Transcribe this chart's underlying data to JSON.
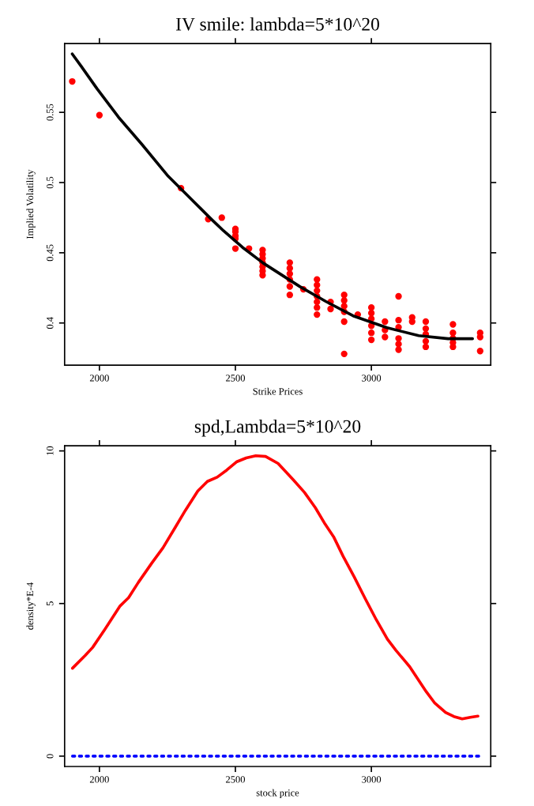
{
  "chart_data": [
    {
      "type": "scatter",
      "title": "IV smile: lambda=5*10^20",
      "xlabel": "Strike Prices",
      "ylabel": "Implied Volatility",
      "xlim": [
        1872,
        3439
      ],
      "ylim": [
        0.37,
        0.599
      ],
      "xticks": [
        2000,
        2500,
        3000
      ],
      "yticks": [
        0.4,
        0.45,
        0.5,
        0.55
      ],
      "grid": false,
      "series": [
        {
          "marker": "circle",
          "color": "#ff0000",
          "x": [
            1900,
            2000,
            2300,
            2400,
            2450,
            2500,
            2500,
            2500,
            2500,
            2500,
            2550,
            2600,
            2600,
            2600,
            2600,
            2600,
            2600,
            2600,
            2700,
            2700,
            2700,
            2700,
            2700,
            2700,
            2750,
            2800,
            2800,
            2800,
            2800,
            2800,
            2800,
            2800,
            2850,
            2850,
            2900,
            2900,
            2900,
            2900,
            2900,
            2900,
            2950,
            3000,
            3000,
            3000,
            3000,
            3000,
            3000,
            3050,
            3050,
            3050,
            3100,
            3100,
            3100,
            3100,
            3100,
            3100,
            3150,
            3150,
            3200,
            3200,
            3200,
            3200,
            3200,
            3300,
            3300,
            3300,
            3300,
            3300,
            3400,
            3400,
            3400
          ],
          "values": [
            0.572,
            0.548,
            0.496,
            0.474,
            0.475,
            0.467,
            0.465,
            0.462,
            0.46,
            0.453,
            0.453,
            0.452,
            0.449,
            0.446,
            0.443,
            0.44,
            0.437,
            0.434,
            0.443,
            0.439,
            0.435,
            0.431,
            0.426,
            0.42,
            0.424,
            0.431,
            0.427,
            0.423,
            0.419,
            0.415,
            0.411,
            0.406,
            0.415,
            0.41,
            0.42,
            0.416,
            0.412,
            0.408,
            0.401,
            0.378,
            0.406,
            0.411,
            0.407,
            0.403,
            0.398,
            0.393,
            0.388,
            0.401,
            0.395,
            0.39,
            0.419,
            0.402,
            0.397,
            0.389,
            0.385,
            0.381,
            0.404,
            0.401,
            0.401,
            0.396,
            0.392,
            0.387,
            0.383,
            0.399,
            0.393,
            0.389,
            0.386,
            0.383,
            0.393,
            0.39,
            0.38
          ]
        },
        {
          "type": "line",
          "marker": "none",
          "color": "#000000",
          "x": [
            1900,
            1932,
            1991,
            2070,
            2157,
            2253,
            2323,
            2410,
            2456,
            2526,
            2602,
            2738,
            2834,
            2933,
            3058,
            3174,
            3282,
            3372
          ],
          "values": [
            0.5916,
            0.5831,
            0.5669,
            0.5466,
            0.527,
            0.5045,
            0.491,
            0.4742,
            0.4657,
            0.4539,
            0.4427,
            0.4258,
            0.4152,
            0.4051,
            0.3966,
            0.391,
            0.3888,
            0.3888
          ]
        }
      ]
    },
    {
      "type": "line",
      "title": "spd,Lambda=5*10^20",
      "xlabel": "stock price",
      "ylabel": "density*E-4",
      "xlim": [
        1872,
        3439
      ],
      "ylim": [
        -0.34,
        10.17
      ],
      "xticks": [
        2000,
        2500,
        3000
      ],
      "yticks": [
        0,
        5,
        10
      ],
      "grid": false,
      "series": [
        {
          "color": "#ff0000",
          "line_style": "solid",
          "x": [
            1901,
            1947,
            1975,
            2020,
            2076,
            2107,
            2143,
            2193,
            2234,
            2280,
            2316,
            2362,
            2397,
            2433,
            2468,
            2504,
            2540,
            2575,
            2611,
            2657,
            2713,
            2754,
            2794,
            2830,
            2861,
            2896,
            2937,
            2978,
            3018,
            3059,
            3090,
            3141,
            3202,
            3232,
            3273,
            3303,
            3334,
            3364,
            3392
          ],
          "values": [
            2.88,
            3.29,
            3.56,
            4.15,
            4.92,
            5.19,
            5.69,
            6.33,
            6.83,
            7.51,
            8.05,
            8.69,
            9.0,
            9.14,
            9.37,
            9.64,
            9.77,
            9.84,
            9.82,
            9.59,
            9.05,
            8.64,
            8.14,
            7.6,
            7.19,
            6.55,
            5.87,
            5.15,
            4.47,
            3.83,
            3.47,
            2.93,
            2.11,
            1.75,
            1.43,
            1.3,
            1.22,
            1.27,
            1.31
          ]
        },
        {
          "color": "#0000ff",
          "line_style": "dotted",
          "x": [
            1901,
            3405
          ],
          "values": [
            0,
            0
          ]
        }
      ]
    }
  ]
}
